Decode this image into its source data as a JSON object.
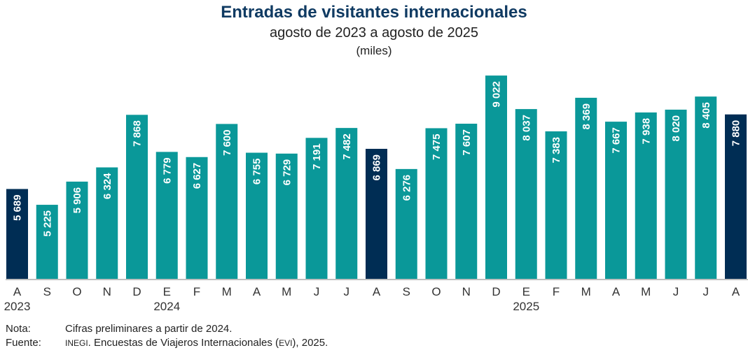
{
  "chart_data": {
    "type": "bar",
    "title": "Entradas de visitantes internacionales",
    "subtitle": "agosto de 2023 a agosto de 2025",
    "unit": "(miles)",
    "xlabel": "",
    "ylabel": "",
    "ylim": [
      3050,
      9250
    ],
    "grid": false,
    "categories": [
      "A",
      "S",
      "O",
      "N",
      "D",
      "E",
      "F",
      "M",
      "A",
      "M",
      "J",
      "J",
      "A",
      "S",
      "O",
      "N",
      "D",
      "E",
      "F",
      "M",
      "A",
      "M",
      "J",
      "J",
      "A"
    ],
    "year_labels": [
      {
        "index": 0,
        "label": "2023"
      },
      {
        "index": 5,
        "label": "2024"
      },
      {
        "index": 17,
        "label": "2025"
      }
    ],
    "values": [
      5689,
      5225,
      5906,
      6324,
      7868,
      6779,
      6627,
      7600,
      6755,
      6729,
      7191,
      7482,
      6869,
      6276,
      7475,
      7607,
      9022,
      8037,
      7383,
      8369,
      7667,
      7938,
      8020,
      8405,
      7880
    ],
    "value_labels": [
      "5 689",
      "5 225",
      "5 906",
      "6 324",
      "7 868",
      "6 779",
      "6 627",
      "7 600",
      "6 755",
      "6 729",
      "7 191",
      "7 482",
      "6 869",
      "6 276",
      "7 475",
      "7 607",
      "9 022",
      "8 037",
      "7 383",
      "8 369",
      "7 667",
      "7 938",
      "8 020",
      "8 405",
      "7 880"
    ],
    "highlight_indices": [
      0,
      12,
      24
    ],
    "colors": {
      "bar": "#0a9899",
      "highlight": "#002d54",
      "axis": "#bfbfbf"
    }
  },
  "notes": {
    "nota_key": "Nota:",
    "nota_text": "Cifras preliminares a partir de 2024.",
    "fuente_key": "Fuente:",
    "fuente_org": "INEGI",
    "fuente_text_1": ". Encuestas de Viajeros Internacionales (",
    "fuente_abbr": "EVI",
    "fuente_text_2": "), 2025."
  }
}
